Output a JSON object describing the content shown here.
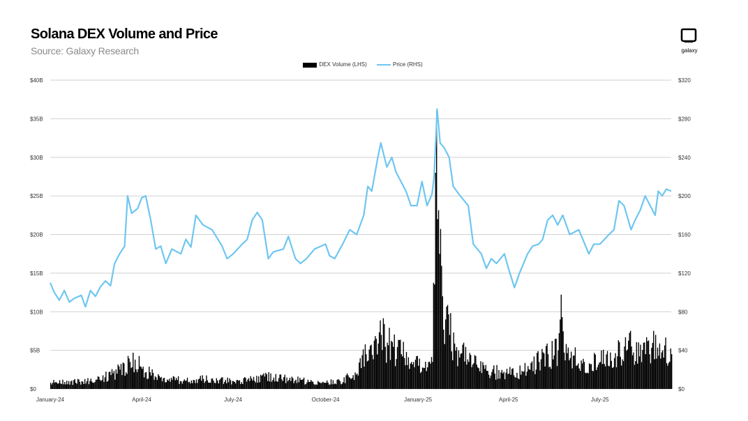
{
  "header": {
    "title": "Solana DEX Volume and Price",
    "subtitle": "Source: Galaxy Research",
    "logo_text": "galaxy"
  },
  "colors": {
    "volume": "#000000",
    "price": "#6ec6f0",
    "grid": "#d0d0d0",
    "logo": "#000000"
  },
  "chart_data": {
    "type": "bar",
    "title": "Solana DEX Volume and Price",
    "subtitle": "Source: Galaxy Research",
    "legend_position": "top-center",
    "grid": true,
    "x_labels": [
      "January-24",
      "April-24",
      "July-24",
      "October-24",
      "January-25",
      "April-25",
      "July-25"
    ],
    "x_range": [
      "2024-01-01",
      "2025-09-10"
    ],
    "y_left": {
      "ticks": [
        "$0",
        "$5B",
        "$10B",
        "$15B",
        "$20B",
        "$25B",
        "$30B",
        "$35B",
        "$40B"
      ],
      "range": [
        0,
        40
      ],
      "unit": "$B"
    },
    "y_right": {
      "ticks": [
        "$0",
        "$40",
        "$80",
        "$120",
        "$160",
        "$200",
        "$240",
        "$280",
        "$320"
      ],
      "range": [
        0,
        320
      ],
      "unit": "$"
    },
    "series": [
      {
        "name": "DEX Volume (LHS)",
        "type": "bar",
        "axis": "left",
        "points": [
          [
            "2024-01-01",
            0.8
          ],
          [
            "2024-01-15",
            0.9
          ],
          [
            "2024-02-01",
            1.0
          ],
          [
            "2024-02-15",
            1.2
          ],
          [
            "2024-03-01",
            1.8
          ],
          [
            "2024-03-10",
            2.5
          ],
          [
            "2024-03-20",
            3.5
          ],
          [
            "2024-03-25",
            3.8
          ],
          [
            "2024-04-01",
            2.6
          ],
          [
            "2024-04-15",
            1.5
          ],
          [
            "2024-05-01",
            1.2
          ],
          [
            "2024-05-15",
            1.1
          ],
          [
            "2024-06-01",
            1.3
          ],
          [
            "2024-06-15",
            1.1
          ],
          [
            "2024-07-01",
            1.0
          ],
          [
            "2024-07-15",
            1.2
          ],
          [
            "2024-08-01",
            1.6
          ],
          [
            "2024-08-15",
            1.4
          ],
          [
            "2024-09-01",
            1.2
          ],
          [
            "2024-09-15",
            0.9
          ],
          [
            "2024-10-01",
            0.8
          ],
          [
            "2024-10-15",
            1.0
          ],
          [
            "2024-11-01",
            2.0
          ],
          [
            "2024-11-10",
            4.5
          ],
          [
            "2024-11-20",
            6.5
          ],
          [
            "2024-11-25",
            7.0
          ],
          [
            "2024-12-01",
            6.0
          ],
          [
            "2024-12-15",
            4.5
          ],
          [
            "2024-12-25",
            3.5
          ],
          [
            "2025-01-01",
            3.0
          ],
          [
            "2025-01-10",
            2.8
          ],
          [
            "2025-01-15",
            3.5
          ],
          [
            "2025-01-18",
            28.0
          ],
          [
            "2025-01-19",
            36.0
          ],
          [
            "2025-01-20",
            22.0
          ],
          [
            "2025-01-22",
            17.5
          ],
          [
            "2025-01-25",
            12.0
          ],
          [
            "2025-01-28",
            9.0
          ],
          [
            "2025-02-01",
            7.0
          ],
          [
            "2025-02-10",
            5.0
          ],
          [
            "2025-02-20",
            3.5
          ],
          [
            "2025-03-01",
            2.8
          ],
          [
            "2025-03-15",
            2.2
          ],
          [
            "2025-04-01",
            2.0
          ],
          [
            "2025-04-15",
            2.2
          ],
          [
            "2025-05-01",
            3.5
          ],
          [
            "2025-05-10",
            4.5
          ],
          [
            "2025-05-20",
            5.0
          ],
          [
            "2025-05-22",
            9.0
          ],
          [
            "2025-06-01",
            4.0
          ],
          [
            "2025-06-15",
            3.5
          ],
          [
            "2025-07-01",
            3.5
          ],
          [
            "2025-07-15",
            4.0
          ],
          [
            "2025-07-25",
            5.5
          ],
          [
            "2025-08-01",
            5.5
          ],
          [
            "2025-08-15",
            4.5
          ],
          [
            "2025-08-25",
            7.0
          ],
          [
            "2025-09-01",
            5.0
          ],
          [
            "2025-09-10",
            4.5
          ]
        ]
      },
      {
        "name": "Price (RHS)",
        "type": "line",
        "axis": "right",
        "points": [
          [
            "2024-01-01",
            110
          ],
          [
            "2024-01-05",
            100
          ],
          [
            "2024-01-10",
            92
          ],
          [
            "2024-01-15",
            102
          ],
          [
            "2024-01-20",
            90
          ],
          [
            "2024-01-25",
            94
          ],
          [
            "2024-02-01",
            97
          ],
          [
            "2024-02-05",
            85
          ],
          [
            "2024-02-10",
            102
          ],
          [
            "2024-02-15",
            96
          ],
          [
            "2024-02-20",
            106
          ],
          [
            "2024-02-25",
            112
          ],
          [
            "2024-03-01",
            107
          ],
          [
            "2024-03-05",
            130
          ],
          [
            "2024-03-10",
            140
          ],
          [
            "2024-03-15",
            148
          ],
          [
            "2024-03-18",
            200
          ],
          [
            "2024-03-22",
            182
          ],
          [
            "2024-03-28",
            187
          ],
          [
            "2024-04-01",
            198
          ],
          [
            "2024-04-05",
            200
          ],
          [
            "2024-04-10",
            175
          ],
          [
            "2024-04-15",
            145
          ],
          [
            "2024-04-20",
            148
          ],
          [
            "2024-04-25",
            130
          ],
          [
            "2024-05-01",
            145
          ],
          [
            "2024-05-10",
            140
          ],
          [
            "2024-05-15",
            155
          ],
          [
            "2024-05-20",
            147
          ],
          [
            "2024-05-25",
            180
          ],
          [
            "2024-06-01",
            170
          ],
          [
            "2024-06-10",
            165
          ],
          [
            "2024-06-20",
            148
          ],
          [
            "2024-06-25",
            135
          ],
          [
            "2024-07-01",
            140
          ],
          [
            "2024-07-10",
            150
          ],
          [
            "2024-07-15",
            155
          ],
          [
            "2024-07-20",
            175
          ],
          [
            "2024-07-25",
            183
          ],
          [
            "2024-07-30",
            175
          ],
          [
            "2024-08-05",
            135
          ],
          [
            "2024-08-10",
            142
          ],
          [
            "2024-08-20",
            145
          ],
          [
            "2024-08-25",
            158
          ],
          [
            "2024-09-01",
            135
          ],
          [
            "2024-09-06",
            130
          ],
          [
            "2024-09-12",
            135
          ],
          [
            "2024-09-20",
            145
          ],
          [
            "2024-10-01",
            150
          ],
          [
            "2024-10-05",
            138
          ],
          [
            "2024-10-10",
            135
          ],
          [
            "2024-10-18",
            150
          ],
          [
            "2024-10-25",
            165
          ],
          [
            "2024-11-01",
            160
          ],
          [
            "2024-11-08",
            180
          ],
          [
            "2024-11-12",
            210
          ],
          [
            "2024-11-16",
            205
          ],
          [
            "2024-11-22",
            240
          ],
          [
            "2024-11-25",
            255
          ],
          [
            "2024-12-01",
            230
          ],
          [
            "2024-12-06",
            240
          ],
          [
            "2024-12-10",
            225
          ],
          [
            "2024-12-15",
            215
          ],
          [
            "2024-12-20",
            205
          ],
          [
            "2024-12-25",
            190
          ],
          [
            "2024-12-31",
            190
          ],
          [
            "2025-01-05",
            215
          ],
          [
            "2025-01-10",
            190
          ],
          [
            "2025-01-15",
            202
          ],
          [
            "2025-01-17",
            220
          ],
          [
            "2025-01-19",
            265
          ],
          [
            "2025-01-20",
            290
          ],
          [
            "2025-01-23",
            255
          ],
          [
            "2025-01-27",
            250
          ],
          [
            "2025-02-01",
            240
          ],
          [
            "2025-02-05",
            210
          ],
          [
            "2025-02-12",
            200
          ],
          [
            "2025-02-20",
            190
          ],
          [
            "2025-02-25",
            150
          ],
          [
            "2025-03-01",
            145
          ],
          [
            "2025-03-05",
            140
          ],
          [
            "2025-03-10",
            125
          ],
          [
            "2025-03-15",
            135
          ],
          [
            "2025-03-20",
            130
          ],
          [
            "2025-03-28",
            140
          ],
          [
            "2025-04-01",
            125
          ],
          [
            "2025-04-07",
            105
          ],
          [
            "2025-04-12",
            120
          ],
          [
            "2025-04-20",
            140
          ],
          [
            "2025-04-25",
            148
          ],
          [
            "2025-05-01",
            150
          ],
          [
            "2025-05-05",
            155
          ],
          [
            "2025-05-10",
            175
          ],
          [
            "2025-05-15",
            180
          ],
          [
            "2025-05-20",
            170
          ],
          [
            "2025-05-25",
            180
          ],
          [
            "2025-06-01",
            160
          ],
          [
            "2025-06-10",
            165
          ],
          [
            "2025-06-20",
            140
          ],
          [
            "2025-06-25",
            150
          ],
          [
            "2025-07-01",
            150
          ],
          [
            "2025-07-10",
            160
          ],
          [
            "2025-07-15",
            165
          ],
          [
            "2025-07-20",
            195
          ],
          [
            "2025-07-25",
            190
          ],
          [
            "2025-08-01",
            165
          ],
          [
            "2025-08-05",
            175
          ],
          [
            "2025-08-10",
            185
          ],
          [
            "2025-08-15",
            200
          ],
          [
            "2025-08-20",
            190
          ],
          [
            "2025-08-25",
            180
          ],
          [
            "2025-08-28",
            205
          ],
          [
            "2025-09-01",
            200
          ],
          [
            "2025-09-05",
            207
          ],
          [
            "2025-09-10",
            205
          ]
        ]
      }
    ]
  }
}
